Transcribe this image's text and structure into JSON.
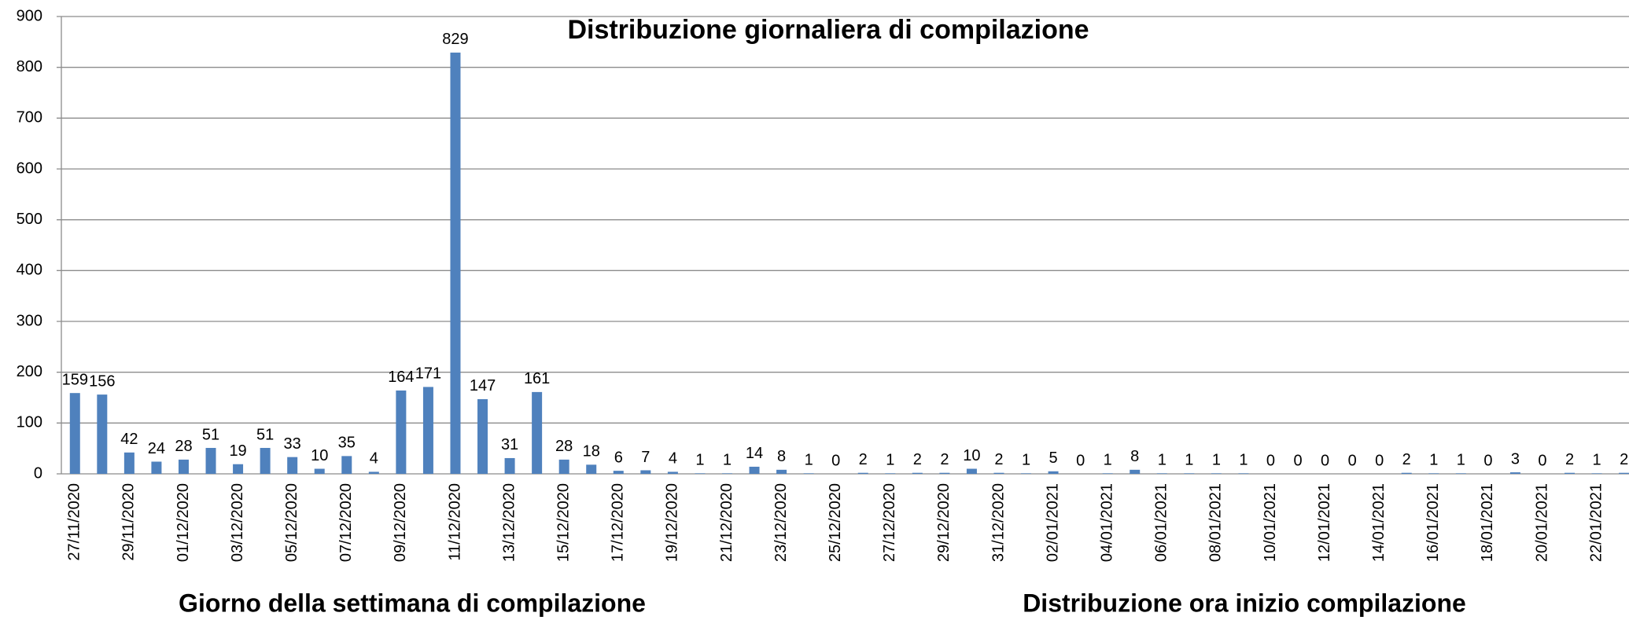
{
  "chart_data": {
    "type": "bar",
    "title": "Distribuzione giornaliera di compilazione",
    "categories": [
      "27/11/2020",
      null,
      "29/11/2020",
      null,
      "01/12/2020",
      null,
      "03/12/2020",
      null,
      "05/12/2020",
      null,
      "07/12/2020",
      null,
      "09/12/2020",
      null,
      "11/12/2020",
      null,
      "13/12/2020",
      null,
      "15/12/2020",
      null,
      "17/12/2020",
      null,
      "19/12/2020",
      null,
      "21/12/2020",
      null,
      "23/12/2020",
      null,
      "25/12/2020",
      null,
      "27/12/2020",
      null,
      "29/12/2020",
      null,
      "31/12/2020",
      null,
      "02/01/2021",
      null,
      "04/01/2021",
      null,
      "06/01/2021",
      null,
      "08/01/2021",
      null,
      "10/01/2021",
      null,
      "12/01/2021",
      null,
      "14/01/2021",
      null,
      "16/01/2021",
      null,
      "18/01/2021",
      null,
      "20/01/2021",
      null,
      "22/01/2021",
      null
    ],
    "values": [
      159,
      156,
      42,
      24,
      28,
      51,
      19,
      51,
      33,
      10,
      35,
      4,
      164,
      171,
      829,
      147,
      31,
      161,
      28,
      18,
      6,
      7,
      4,
      1,
      1,
      14,
      8,
      1,
      0,
      2,
      1,
      2,
      2,
      10,
      2,
      1,
      5,
      0,
      1,
      8,
      1,
      1,
      1,
      1,
      0,
      0,
      0,
      0,
      0,
      2,
      1,
      1,
      0,
      3,
      0,
      2,
      1,
      2
    ],
    "color": "#4f81bd",
    "ylim": [
      0,
      900
    ],
    "yticks": [
      0,
      100,
      200,
      300,
      400,
      500,
      600,
      700,
      800,
      900
    ],
    "grid": true,
    "annotations": [
      "Giorno della settimana di compilazione",
      "Distribuzione ora inizio compilazione"
    ]
  }
}
